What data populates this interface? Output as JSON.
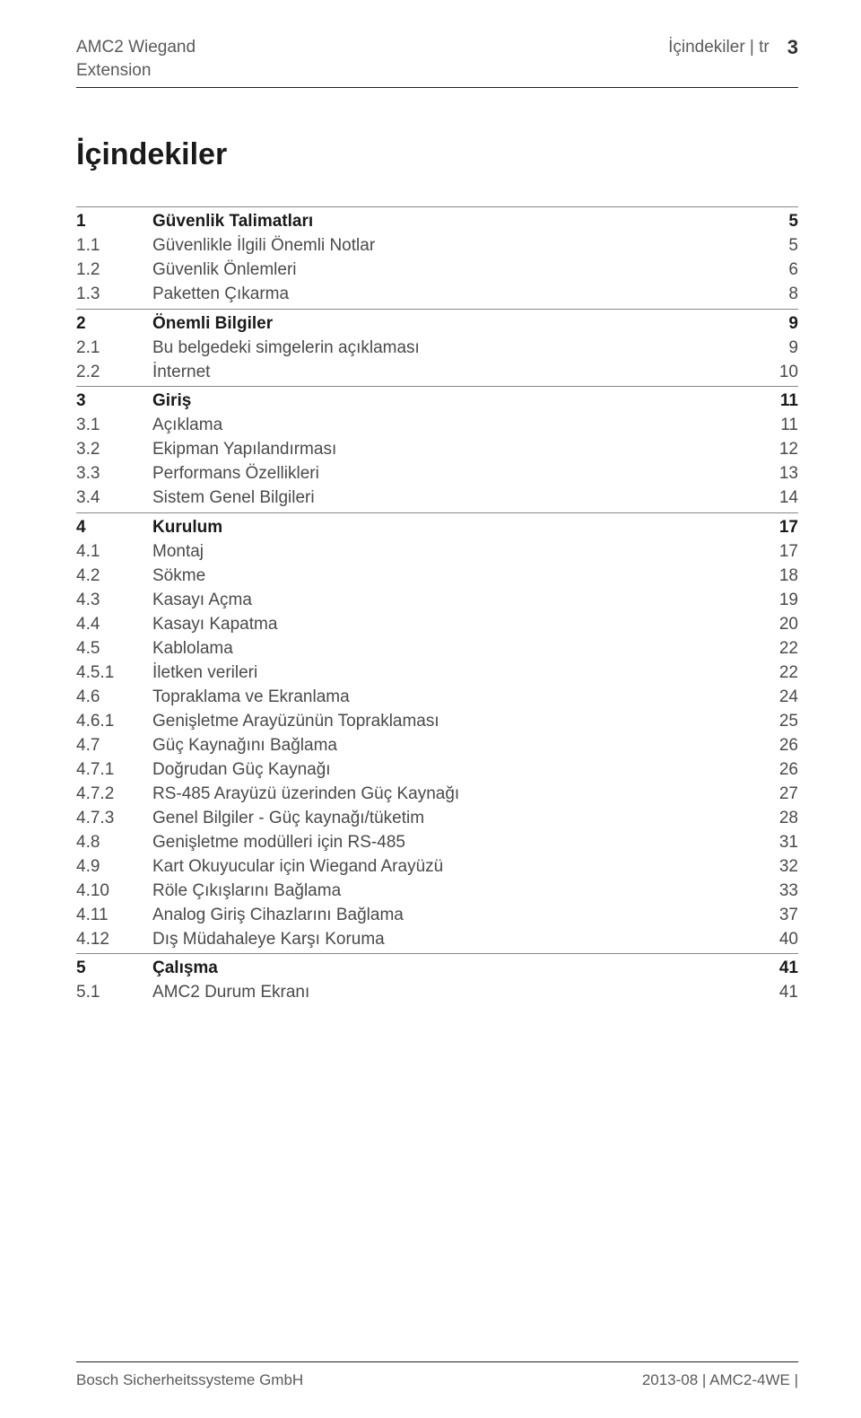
{
  "header": {
    "product_line1": "AMC2 Wiegand",
    "product_line2": "Extension",
    "breadcrumb": "İçindekiler | tr",
    "page": "3"
  },
  "title": "İçindekiler",
  "toc": [
    {
      "num": "1",
      "text": "Güvenlik Talimatları",
      "page": "5",
      "level": "section"
    },
    {
      "num": "1.1",
      "text": "Güvenlikle İlgili Önemli Notlar",
      "page": "5",
      "level": "sub"
    },
    {
      "num": "1.2",
      "text": "Güvenlik Önlemleri",
      "page": "6",
      "level": "sub"
    },
    {
      "num": "1.3",
      "text": "Paketten Çıkarma",
      "page": "8",
      "level": "sub"
    },
    {
      "num": "2",
      "text": "Önemli Bilgiler",
      "page": "9",
      "level": "section"
    },
    {
      "num": "2.1",
      "text": "Bu belgedeki simgelerin açıklaması",
      "page": "9",
      "level": "sub"
    },
    {
      "num": "2.2",
      "text": "İnternet",
      "page": "10",
      "level": "sub"
    },
    {
      "num": "3",
      "text": "Giriş",
      "page": "11",
      "level": "section"
    },
    {
      "num": "3.1",
      "text": "Açıklama",
      "page": "11",
      "level": "sub"
    },
    {
      "num": "3.2",
      "text": "Ekipman Yapılandırması",
      "page": "12",
      "level": "sub"
    },
    {
      "num": "3.3",
      "text": "Performans Özellikleri",
      "page": "13",
      "level": "sub"
    },
    {
      "num": "3.4",
      "text": "Sistem Genel Bilgileri",
      "page": "14",
      "level": "sub"
    },
    {
      "num": "4",
      "text": "Kurulum",
      "page": "17",
      "level": "section"
    },
    {
      "num": "4.1",
      "text": "Montaj",
      "page": "17",
      "level": "sub"
    },
    {
      "num": "4.2",
      "text": "Sökme",
      "page": "18",
      "level": "sub"
    },
    {
      "num": "4.3",
      "text": "Kasayı Açma",
      "page": "19",
      "level": "sub"
    },
    {
      "num": "4.4",
      "text": "Kasayı Kapatma",
      "page": "20",
      "level": "sub"
    },
    {
      "num": "4.5",
      "text": "Kablolama",
      "page": "22",
      "level": "sub"
    },
    {
      "num": "4.5.1",
      "text": "İletken verileri",
      "page": "22",
      "level": "sub"
    },
    {
      "num": "4.6",
      "text": "Topraklama ve Ekranlama",
      "page": "24",
      "level": "sub"
    },
    {
      "num": "4.6.1",
      "text": "Genişletme Arayüzünün Topraklaması",
      "page": "25",
      "level": "sub"
    },
    {
      "num": "4.7",
      "text": "Güç Kaynağını Bağlama",
      "page": "26",
      "level": "sub"
    },
    {
      "num": "4.7.1",
      "text": "Doğrudan Güç Kaynağı",
      "page": "26",
      "level": "sub"
    },
    {
      "num": "4.7.2",
      "text": "RS-485 Arayüzü üzerinden Güç Kaynağı",
      "page": "27",
      "level": "sub"
    },
    {
      "num": "4.7.3",
      "text": "Genel Bilgiler - Güç kaynağı/tüketim",
      "page": "28",
      "level": "sub"
    },
    {
      "num": "4.8",
      "text": "Genişletme modülleri için RS-485",
      "page": "31",
      "level": "sub"
    },
    {
      "num": "4.9",
      "text": "Kart Okuyucular için Wiegand Arayüzü",
      "page": "32",
      "level": "sub"
    },
    {
      "num": "4.10",
      "text": "Röle Çıkışlarını Bağlama",
      "page": "33",
      "level": "sub"
    },
    {
      "num": "4.11",
      "text": "Analog Giriş Cihazlarını Bağlama",
      "page": "37",
      "level": "sub"
    },
    {
      "num": "4.12",
      "text": "Dış Müdahaleye Karşı Koruma",
      "page": "40",
      "level": "sub"
    },
    {
      "num": "5",
      "text": "Çalışma",
      "page": "41",
      "level": "section"
    },
    {
      "num": "5.1",
      "text": "AMC2 Durum Ekranı",
      "page": "41",
      "level": "sub"
    }
  ],
  "footer": {
    "left": "Bosch Sicherheitssysteme GmbH",
    "right": "2013-08 | AMC2-4WE |"
  }
}
